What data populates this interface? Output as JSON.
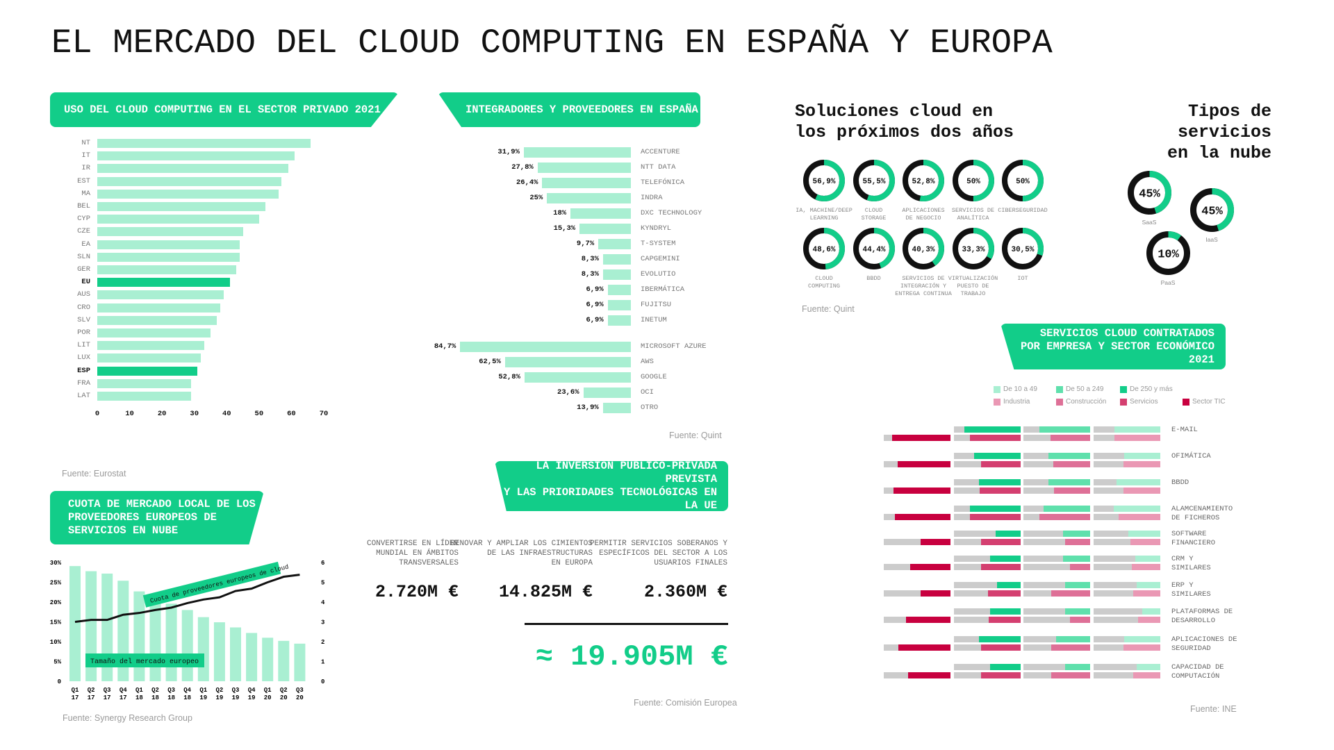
{
  "title": "EL MERCADO DEL CLOUD COMPUTING EN ESPAÑA Y EUROPA",
  "colors": {
    "accent": "#12cd89",
    "bar_light": "#a9efd2",
    "green_mid": "#5fe0ac",
    "black": "#111111",
    "gray": "#cccccc",
    "pink_tic": "#c8003f",
    "pink_servicios": "#d43f70",
    "pink_construccion": "#de7097",
    "pink_industria": "#ea98b4"
  },
  "chart_data": [
    {
      "type": "bar",
      "orientation": "horizontal",
      "title": "USO DEL CLOUD COMPUTING EN EL SECTOR PRIVADO 2021",
      "categories": [
        "NT",
        "IT",
        "IR",
        "EST",
        "MA",
        "BEL",
        "CYP",
        "CZE",
        "EA",
        "SLN",
        "GER",
        "EU",
        "AUS",
        "CRO",
        "SLV",
        "POR",
        "LIT",
        "LUX",
        "ESP",
        "FRA",
        "LAT"
      ],
      "values": [
        66,
        61,
        59,
        57,
        56,
        52,
        50,
        45,
        44,
        44,
        43,
        41,
        39,
        38,
        37,
        35,
        33,
        32,
        31,
        29,
        29
      ],
      "highlighted": [
        "EU",
        "ESP"
      ],
      "xlim": [
        0,
        70
      ],
      "xticks": [
        "0",
        "10",
        "20",
        "30",
        "40",
        "50",
        "60",
        "70"
      ],
      "grid": false,
      "source": "Fuente: Eurostat"
    },
    {
      "type": "bar",
      "orientation": "horizontal",
      "title": "INTEGRADORES Y PROVEEDORES EN ESPAÑA",
      "groups": [
        {
          "categories": [
            "ACCENTURE",
            "NTT DATA",
            "TELEFÓNICA",
            "INDRA",
            "DXC TECHNOLOGY",
            "KYNDRYL",
            "T-SYSTEM",
            "CAPGEMINI",
            "EVOLUTIO",
            "IBERMÁTICA",
            "FUJITSU",
            "INETUM"
          ],
          "values": [
            31.9,
            27.8,
            26.4,
            25,
            18,
            15.3,
            9.7,
            8.3,
            8.3,
            6.9,
            6.9,
            6.9
          ]
        },
        {
          "categories": [
            "MICROSOFT AZURE",
            "AWS",
            "GOOGLE",
            "OCI",
            "OTRO"
          ],
          "values": [
            84.7,
            62.5,
            52.8,
            23.6,
            13.9
          ]
        }
      ],
      "unit": "%",
      "source": "Fuente: Quint"
    },
    {
      "type": "pie",
      "style": "donut",
      "title": "Soluciones cloud en\nlos próximos dos años",
      "items": [
        {
          "label": "IA, MACHINE/DEEP\nLEARNING",
          "value": 56.9
        },
        {
          "label": "CLOUD\nSTORAGE",
          "value": 55.5
        },
        {
          "label": "APLICACIONES\nDE NEGOCIO",
          "value": 52.8
        },
        {
          "label": "SERVICIOS DE\nANALÍTICA",
          "value": 50
        },
        {
          "label": "CIBERSEGURIDAD",
          "value": 50
        },
        {
          "label": "CLOUD\nCOMPUTING",
          "value": 48.6
        },
        {
          "label": "BBDD",
          "value": 44.4
        },
        {
          "label": "SERVICIOS DE\nINTEGRACIÓN Y\nENTREGA CONTINUA",
          "value": 40.3
        },
        {
          "label": "VIRTUALIZACIÓN\nPUESTO DE\nTRABAJO",
          "value": 33.3
        },
        {
          "label": "IOT",
          "value": 30.5
        }
      ],
      "unit": "%",
      "source": "Fuente: Quint"
    },
    {
      "type": "pie",
      "style": "donut",
      "title": "Tipos de\nservicios\nen la nube",
      "items": [
        {
          "label": "SaaS",
          "value": 45
        },
        {
          "label": "IaaS",
          "value": 45
        },
        {
          "label": "PaaS",
          "value": 10
        }
      ],
      "unit": "%"
    },
    {
      "type": "bar",
      "combo": "bar+line",
      "title": "CUOTA DE MERCADO LOCAL DE LOS\nPROVEEDORES EUROPEOS DE\nSERVICIOS EN NUBE",
      "categories": [
        "Q1 17",
        "Q2 17",
        "Q3 17",
        "Q4 17",
        "Q1 18",
        "Q2 18",
        "Q3 18",
        "Q4 18",
        "Q1 19",
        "Q2 19",
        "Q3 19",
        "Q4 19",
        "Q1 20",
        "Q2 20",
        "Q3 20"
      ],
      "series": [
        {
          "name": "Tamaño del mercado europeo",
          "type": "bar",
          "axis": "left",
          "values": [
            29.1,
            27.8,
            27.2,
            25.4,
            22.7,
            21,
            19.6,
            18,
            16.2,
            14.9,
            13.6,
            12.2,
            11,
            10.2,
            9.5
          ]
        },
        {
          "name": "Cuota de proveedores europeos de cloud",
          "type": "line",
          "axis": "right",
          "values": [
            3.0,
            3.1,
            3.1,
            3.36,
            3.45,
            3.6,
            3.72,
            3.95,
            4.13,
            4.24,
            4.56,
            4.68,
            5.0,
            5.28,
            5.38
          ]
        }
      ],
      "ylim_left": [
        0,
        30
      ],
      "ylim_right": [
        0,
        6
      ],
      "yticks_left": [
        "30%",
        "25%",
        "20%",
        "15%",
        "10%",
        "5%",
        "0"
      ],
      "yticks_right": [
        "6",
        "5",
        "4",
        "3",
        "2",
        "1",
        "0"
      ],
      "source": "Fuente: Synergy Research Group"
    },
    {
      "type": "bar",
      "orientation": "horizontal",
      "title": "SERVICIOS CLOUD CONTRATADOS\nPOR EMPRESA Y SECTOR ECONÓMICO 2021",
      "legend": [
        {
          "label": "De 10 a 49",
          "color": "#a9efd2"
        },
        {
          "label": "De 50 a 249",
          "color": "#5fe0ac"
        },
        {
          "label": "De 250 y más",
          "color": "#12cd89"
        },
        {
          "label": "Industria",
          "color": "#ea98b4"
        },
        {
          "label": "Construcción",
          "color": "#de7097"
        },
        {
          "label": "Servicios",
          "color": "#d43f70"
        },
        {
          "label": "Sector TIC",
          "color": "#c8003f"
        }
      ],
      "categories": [
        "E-MAIL",
        "OFIMÁTICA",
        "BBDD",
        "ALAMCENAMIENTO\nDE FICHEROS",
        "SOFTWARE\nFINANCIERO",
        "CRM Y\nSIMILARES",
        "ERP Y\nSIMILARES",
        "PLATAFORMAS DE\nDESARROLLO",
        "APLICACIONES DE\nSEGURIDAD",
        "CAPACIDAD DE\nCOMPUTACIÓN"
      ],
      "series": [
        {
          "name": "De 250 y más",
          "values": [
            0.84,
            0.7,
            0.63,
            0.76,
            0.38,
            0.46,
            0.35,
            0.46,
            0.62,
            0.46
          ]
        },
        {
          "name": "De 50 a 249",
          "values": [
            0.76,
            0.62,
            0.62,
            0.7,
            0.41,
            0.41,
            0.38,
            0.38,
            0.51,
            0.38
          ]
        },
        {
          "name": "De 10 a 49",
          "values": [
            0.69,
            0.54,
            0.66,
            0.7,
            0.48,
            0.38,
            0.35,
            0.27,
            0.54,
            0.35
          ]
        },
        {
          "name": "Sector TIC",
          "values": [
            0.88,
            0.79,
            0.85,
            0.83,
            0.45,
            0.6,
            0.45,
            0.67,
            0.78,
            0.64
          ]
        },
        {
          "name": "Servicios",
          "values": [
            0.76,
            0.59,
            0.61,
            0.76,
            0.59,
            0.59,
            0.49,
            0.48,
            0.59,
            0.59
          ]
        },
        {
          "name": "Construcción",
          "values": [
            0.59,
            0.55,
            0.54,
            0.76,
            0.37,
            0.3,
            0.58,
            0.3,
            0.58,
            0.58
          ]
        },
        {
          "name": "Industria",
          "values": [
            0.69,
            0.55,
            0.55,
            0.63,
            0.45,
            0.43,
            0.41,
            0.33,
            0.55,
            0.41
          ]
        }
      ],
      "xlim": [
        0,
        1
      ],
      "source": "Fuente: INE"
    }
  ],
  "investment": {
    "title": "LA INVERSIÓN PÚBLICO-PRIVADA PREVISTA\nY LAS PRIORIDADES TECNOLÓGICAS EN LA UE",
    "items": [
      {
        "label": "CONVERTIRSE EN LÍDER\nMUNDIAL EN ÁMBITOS\nTRANSVERSALES",
        "value": "2.720M €"
      },
      {
        "label": "RENOVAR Y AMPLIAR LOS CIMIENTOS\nDE LAS INFRAESTRUCTURAS\nEN EUROPA",
        "value": "14.825M €"
      },
      {
        "label": "PERMITIR SERVICIOS SOBERANOS Y\nESPECÍFICOS DEL SECTOR A LOS\nUSUARIOS FINALES",
        "value": "2.360M €"
      }
    ],
    "total": "≈ 19.905M €",
    "source": "Fuente: Comisión Europea"
  }
}
